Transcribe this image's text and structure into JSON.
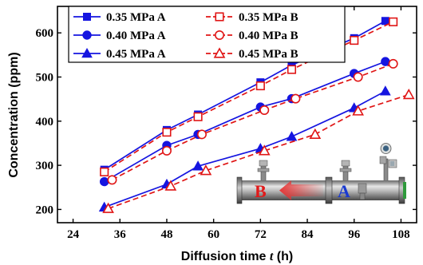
{
  "chart_data": {
    "type": "line",
    "title": "",
    "xlabel": {
      "main": "Diffusion time ",
      "italic": "t",
      "unit": " (h)"
    },
    "ylabel": "Concentration (ppm)",
    "xlim": [
      20,
      112
    ],
    "ylim": [
      170,
      660
    ],
    "xticks": [
      "24",
      "36",
      "48",
      "60",
      "72",
      "84",
      "96",
      "108"
    ],
    "yticks": [
      "200",
      "300",
      "400",
      "500",
      "600"
    ],
    "xtick_values": [
      24,
      36,
      48,
      60,
      72,
      84,
      96,
      108
    ],
    "ytick_values": [
      200,
      300,
      400,
      500,
      600
    ],
    "legend_position": "top-left",
    "series": [
      {
        "name": "0.35 MPa A",
        "color": "#1515e0",
        "marker": "square",
        "filled": true,
        "dash": false,
        "x": [
          32,
          48,
          56,
          72,
          80,
          96,
          104
        ],
        "y": [
          290,
          380,
          415,
          488,
          527,
          588,
          627
        ]
      },
      {
        "name": "0.35 MPa B",
        "color": "#e01515",
        "marker": "square",
        "filled": false,
        "dash": true,
        "x": [
          32,
          48,
          56,
          72,
          80,
          96,
          106
        ],
        "y": [
          285,
          375,
          410,
          480,
          517,
          583,
          625
        ]
      },
      {
        "name": "0.40 MPa A",
        "color": "#1515e0",
        "marker": "circle",
        "filled": true,
        "dash": false,
        "x": [
          32,
          48,
          56,
          72,
          80,
          96,
          104
        ],
        "y": [
          263,
          345,
          370,
          432,
          451,
          508,
          535
        ]
      },
      {
        "name": "0.40 MPa B",
        "color": "#e01515",
        "marker": "circle",
        "filled": false,
        "dash": true,
        "x": [
          34,
          48,
          57,
          73,
          81,
          97,
          106
        ],
        "y": [
          267,
          333,
          370,
          425,
          451,
          500,
          530
        ]
      },
      {
        "name": "0.45 MPa A",
        "color": "#1515e0",
        "marker": "triangle",
        "filled": true,
        "dash": false,
        "x": [
          32,
          48,
          56,
          72,
          80,
          96,
          104
        ],
        "y": [
          205,
          257,
          298,
          338,
          365,
          430,
          468
        ]
      },
      {
        "name": "0.45 MPa B",
        "color": "#e01515",
        "marker": "triangle",
        "filled": false,
        "dash": true,
        "x": [
          33,
          49,
          58,
          73,
          86,
          97,
          110
        ],
        "y": [
          202,
          253,
          288,
          333,
          370,
          423,
          460
        ]
      }
    ],
    "inset": {
      "label_b": "B",
      "label_a": "A"
    }
  }
}
